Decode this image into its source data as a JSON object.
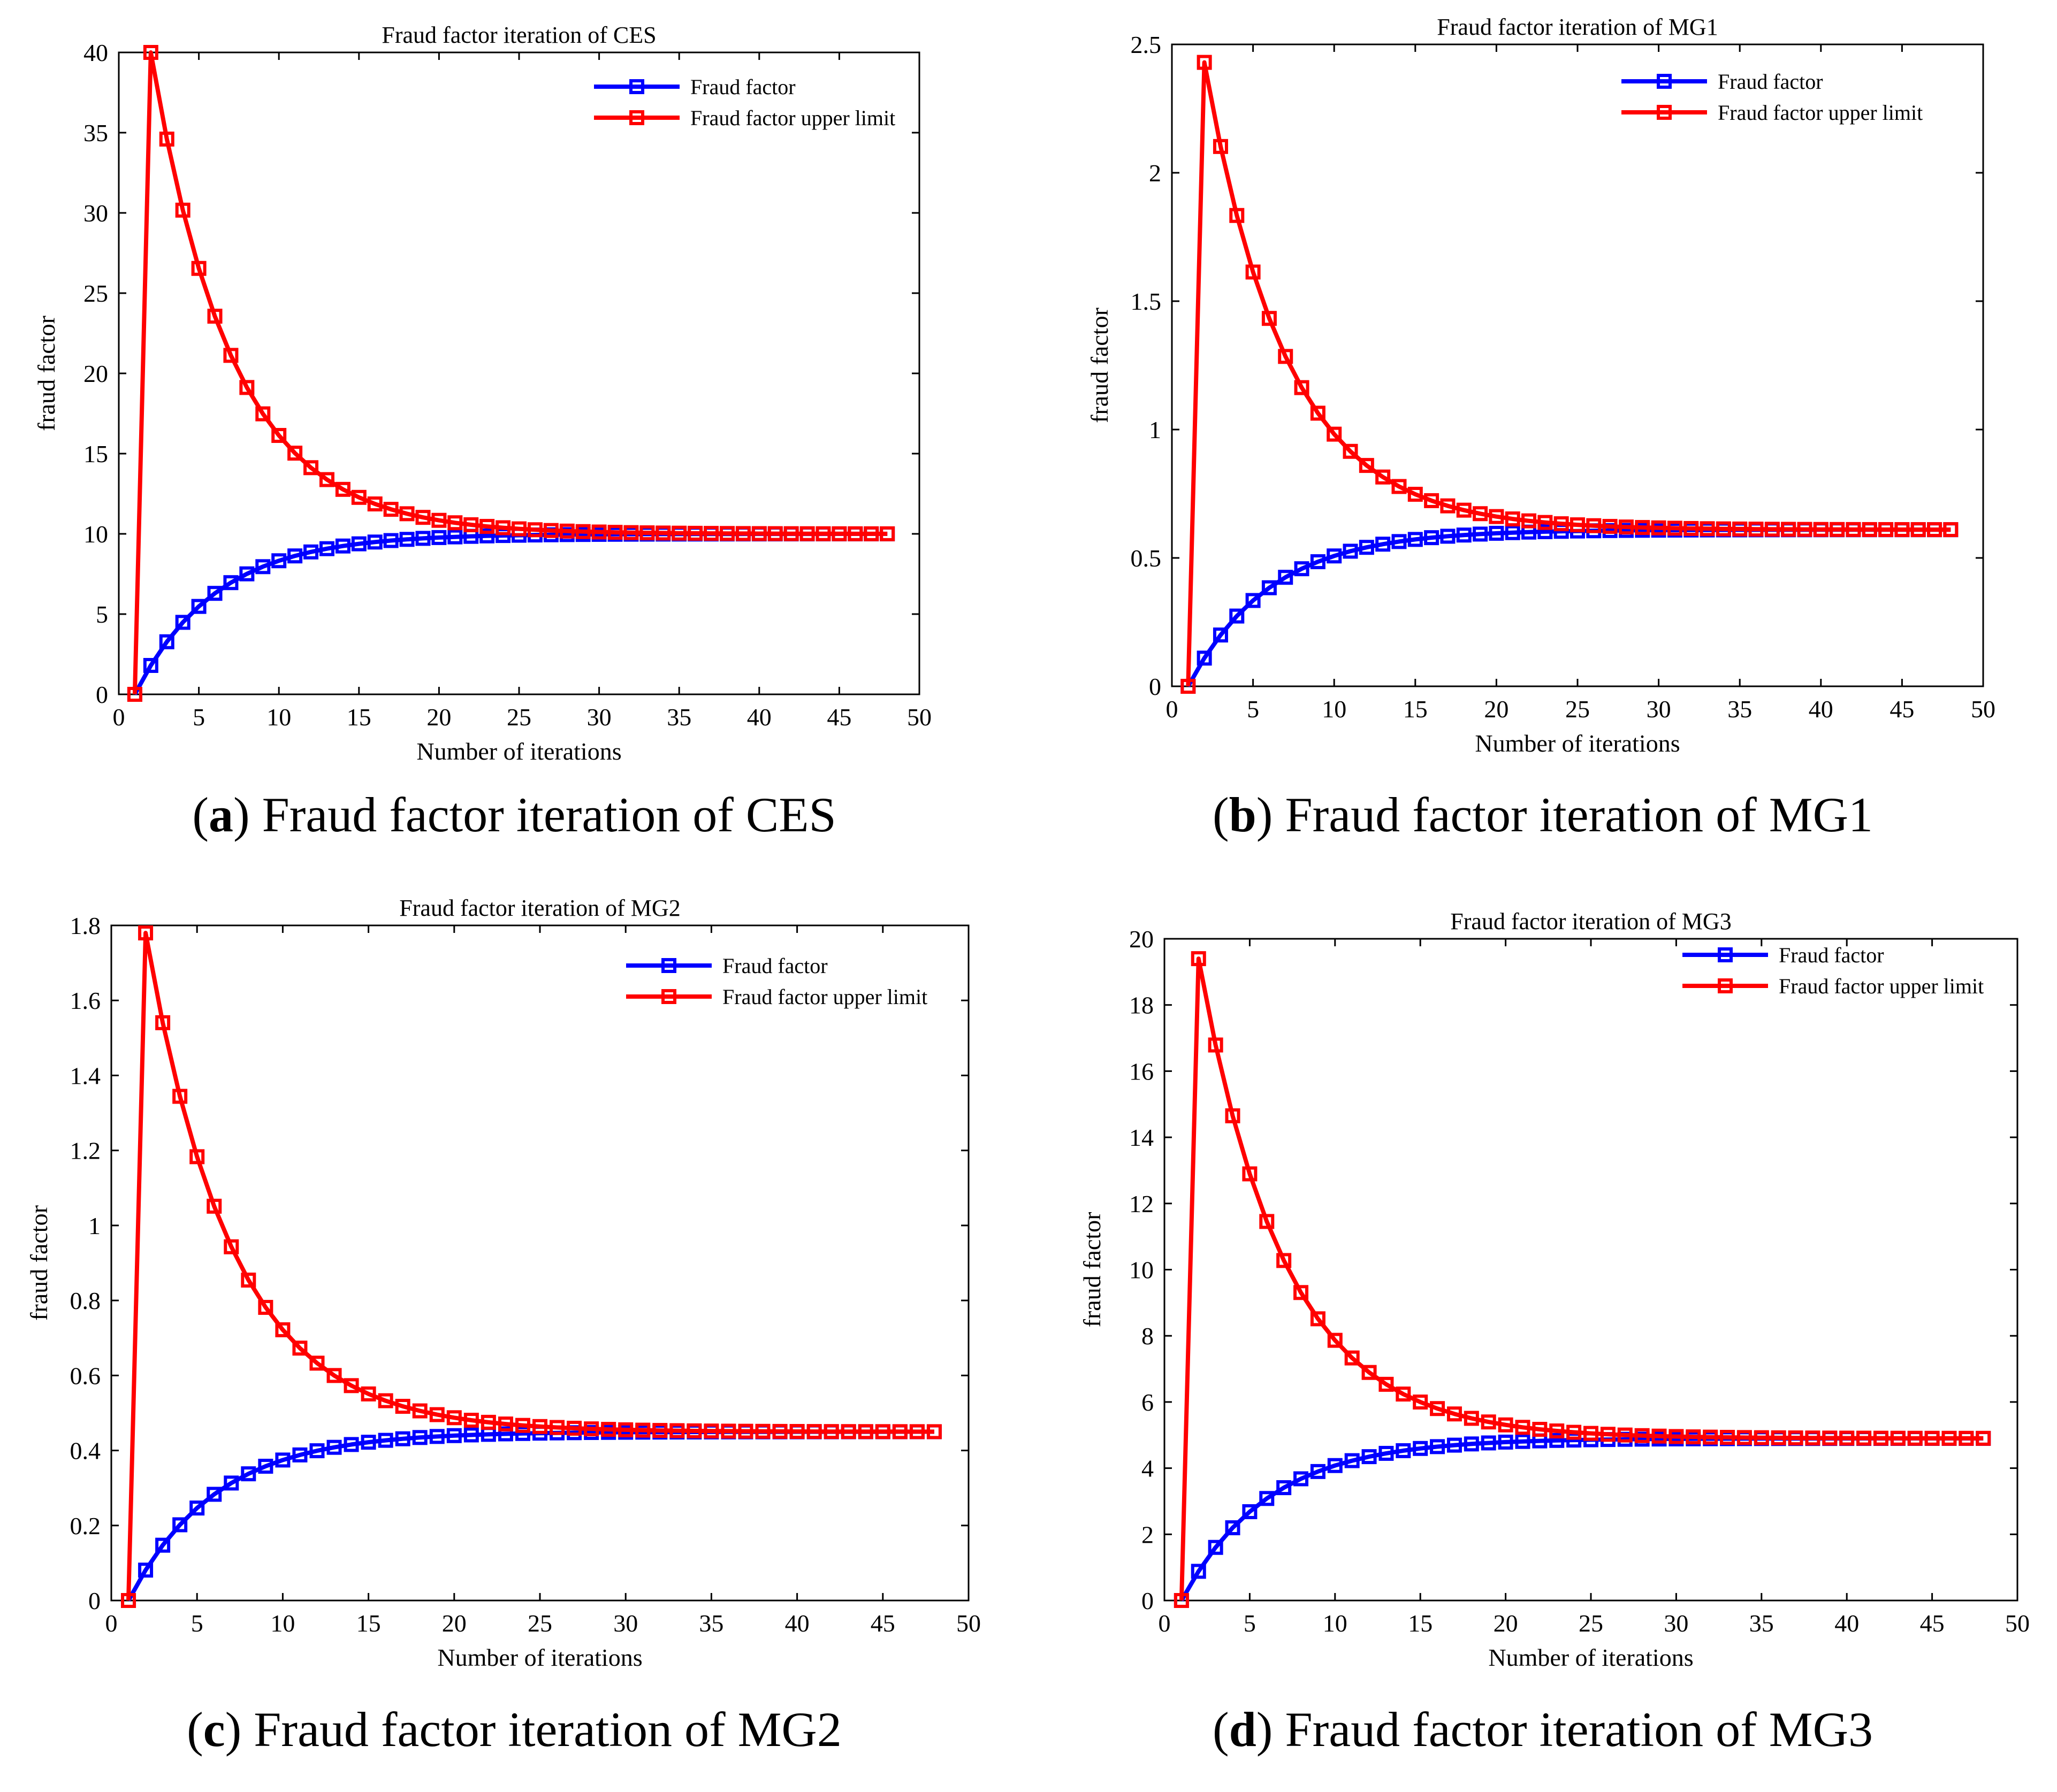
{
  "colors": {
    "fraud_factor": "#0000ff",
    "upper_limit": "#ff0000",
    "axis": "#000000"
  },
  "chart_data": [
    {
      "type": "line",
      "panel": "a",
      "title": "Fraud factor iteration of CES",
      "caption_label": "a",
      "caption_text": "Fraud factor iteration of CES",
      "xlabel": "Number of iterations",
      "ylabel": "fraud factor",
      "xlim": [
        0,
        50
      ],
      "ylim": [
        0,
        40
      ],
      "xticks": [
        0,
        5,
        10,
        15,
        20,
        25,
        30,
        35,
        40,
        45,
        50
      ],
      "yticks": [
        0,
        5,
        10,
        15,
        20,
        25,
        30,
        35,
        40
      ],
      "legend_position": "top-right",
      "series": [
        {
          "name": "Fraud factor",
          "color": "#0000ff",
          "x0": 1,
          "start": 0,
          "final": 10,
          "rate": 0.82,
          "count": 48
        },
        {
          "name": "Fraud factor upper limit",
          "color": "#ff0000",
          "x0": 1,
          "start": 0,
          "peak": 40,
          "final": 10,
          "rate": 0.82,
          "count": 48
        }
      ]
    },
    {
      "type": "line",
      "panel": "b",
      "title": "Fraud factor iteration of MG1",
      "caption_label": "b",
      "caption_text": "Fraud factor iteration of MG1",
      "xlabel": "Number of iterations",
      "ylabel": "fraud factor",
      "xlim": [
        0,
        50
      ],
      "ylim": [
        0,
        2.5
      ],
      "xticks": [
        0,
        5,
        10,
        15,
        20,
        25,
        30,
        35,
        40,
        45,
        50
      ],
      "yticks": [
        0,
        0.5,
        1,
        1.5,
        2,
        2.5
      ],
      "legend_position": "top-right",
      "series": [
        {
          "name": "Fraud factor",
          "color": "#0000ff",
          "x0": 1,
          "start": 0,
          "final": 0.61,
          "rate": 0.82,
          "count": 48
        },
        {
          "name": "Fraud factor upper limit",
          "color": "#ff0000",
          "x0": 1,
          "start": 0,
          "peak": 2.43,
          "final": 0.61,
          "rate": 0.82,
          "count": 48
        }
      ]
    },
    {
      "type": "line",
      "panel": "c",
      "title": "Fraud factor iteration of MG2",
      "caption_label": "c",
      "caption_text": "Fraud factor iteration of MG2",
      "xlabel": "Number of iterations",
      "ylabel": "fraud factor",
      "xlim": [
        0,
        50
      ],
      "ylim": [
        0,
        1.8
      ],
      "xticks": [
        0,
        5,
        10,
        15,
        20,
        25,
        30,
        35,
        40,
        45,
        50
      ],
      "yticks": [
        0,
        0.2,
        0.4,
        0.6,
        0.8,
        1,
        1.2,
        1.4,
        1.6,
        1.8
      ],
      "legend_position": "top-right",
      "series": [
        {
          "name": "Fraud factor",
          "color": "#0000ff",
          "x0": 1,
          "start": 0,
          "final": 0.45,
          "rate": 0.82,
          "count": 48
        },
        {
          "name": "Fraud factor upper limit",
          "color": "#ff0000",
          "x0": 1,
          "start": 0,
          "peak": 1.78,
          "final": 0.45,
          "rate": 0.82,
          "count": 48
        }
      ]
    },
    {
      "type": "line",
      "panel": "d",
      "title": "Fraud factor iteration of MG3",
      "caption_label": "d",
      "caption_text": "Fraud factor iteration of MG3",
      "xlabel": "Number of iterations",
      "ylabel": "fraud factor",
      "xlim": [
        0,
        50
      ],
      "ylim": [
        0,
        20
      ],
      "xticks": [
        0,
        5,
        10,
        15,
        20,
        25,
        30,
        35,
        40,
        45,
        50
      ],
      "yticks": [
        0,
        2,
        4,
        6,
        8,
        10,
        12,
        14,
        16,
        18,
        20
      ],
      "legend_position": "top-right",
      "series": [
        {
          "name": "Fraud factor",
          "color": "#0000ff",
          "x0": 1,
          "start": 0,
          "final": 4.9,
          "rate": 0.82,
          "count": 48
        },
        {
          "name": "Fraud factor upper limit",
          "color": "#ff0000",
          "x0": 1,
          "start": 0,
          "peak": 19.4,
          "final": 4.9,
          "rate": 0.82,
          "count": 48
        }
      ]
    }
  ]
}
